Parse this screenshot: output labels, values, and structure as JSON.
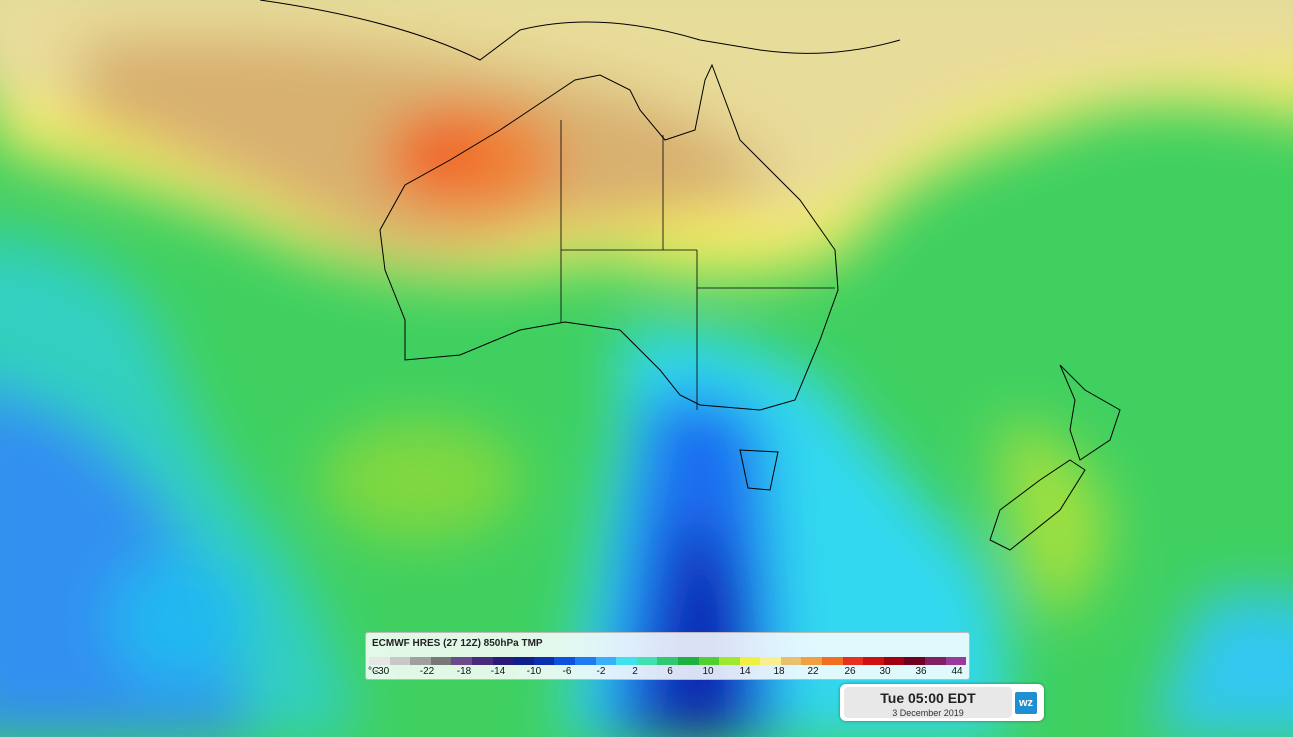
{
  "legend": {
    "title": "ECMWF HRES (27 12Z) 850hPa TMP",
    "unit": "°C",
    "labels": [
      -30,
      -22,
      -18,
      -14,
      -10,
      -6,
      -2,
      2,
      6,
      10,
      14,
      18,
      22,
      26,
      30,
      36,
      44
    ],
    "colors": [
      "#e6e6e6",
      "#c8c8c8",
      "#a0a0a0",
      "#787878",
      "#6a4a8a",
      "#4a2a7a",
      "#2a1a7a",
      "#10208a",
      "#0a30b0",
      "#1050e0",
      "#1e7cf0",
      "#3ab0f8",
      "#40e0f0",
      "#40e0b0",
      "#30c870",
      "#20b040",
      "#50d030",
      "#a0e830",
      "#f0f040",
      "#f8f090",
      "#e8c070",
      "#f0a040",
      "#f07020",
      "#e83020",
      "#d01010",
      "#a00010",
      "#700020",
      "#802060",
      "#9a3a9a"
    ]
  },
  "time_panel": {
    "time": "Tue 05:00 EDT",
    "date": "3 December 2019",
    "logo": "wz"
  }
}
